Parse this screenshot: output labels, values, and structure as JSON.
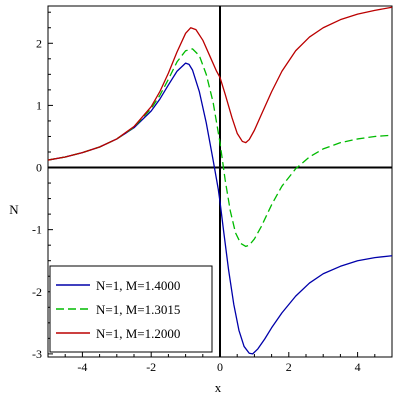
{
  "chart_data": {
    "type": "line",
    "xlabel": "x",
    "ylabel": "N",
    "xlim": [
      -5,
      5
    ],
    "ylim": [
      -3.05,
      2.6
    ],
    "x_ticks": [
      -4,
      -2,
      0,
      2,
      4
    ],
    "y_ticks": [
      -3,
      -2,
      -1,
      0,
      1,
      2
    ],
    "grid": false,
    "legend": {
      "placement": "bottom-left"
    },
    "series": [
      {
        "name": "N=1, M=1.4000",
        "color": "#0000aa",
        "dash": "solid",
        "x": [
          -5,
          -4.5,
          -4,
          -3.5,
          -3,
          -2.5,
          -2,
          -1.75,
          -1.5,
          -1.25,
          -1,
          -0.9,
          -0.8,
          -0.6,
          -0.4,
          -0.2,
          -0.05,
          0,
          0.1,
          0.25,
          0.4,
          0.55,
          0.7,
          0.85,
          0.95,
          1.1,
          1.3,
          1.5,
          1.8,
          2.2,
          2.6,
          3,
          3.5,
          4,
          4.5,
          5
        ],
        "y": [
          0.12,
          0.17,
          0.24,
          0.33,
          0.46,
          0.64,
          0.91,
          1.1,
          1.33,
          1.55,
          1.68,
          1.66,
          1.57,
          1.22,
          0.72,
          0.12,
          -0.35,
          -0.55,
          -1.0,
          -1.65,
          -2.2,
          -2.62,
          -2.88,
          -2.99,
          -3.0,
          -2.92,
          -2.76,
          -2.58,
          -2.34,
          -2.07,
          -1.86,
          -1.71,
          -1.59,
          -1.5,
          -1.45,
          -1.42
        ]
      },
      {
        "name": "N=1, M=1.3015",
        "color": "#00bb00",
        "dash": "dashed",
        "x": [
          -5,
          -4.5,
          -4,
          -3.5,
          -3,
          -2.5,
          -2,
          -1.75,
          -1.5,
          -1.25,
          -1.0,
          -0.8,
          -0.6,
          -0.4,
          -0.2,
          0,
          0.15,
          0.3,
          0.45,
          0.6,
          0.75,
          0.85,
          1.0,
          1.2,
          1.5,
          1.8,
          2.2,
          2.6,
          3,
          3.5,
          4,
          4.5,
          5
        ],
        "y": [
          0.12,
          0.17,
          0.24,
          0.33,
          0.46,
          0.65,
          0.95,
          1.16,
          1.42,
          1.7,
          1.88,
          1.91,
          1.8,
          1.5,
          1.05,
          0.4,
          -0.2,
          -0.7,
          -1.05,
          -1.22,
          -1.27,
          -1.25,
          -1.15,
          -0.95,
          -0.6,
          -0.3,
          -0.02,
          0.17,
          0.3,
          0.4,
          0.46,
          0.5,
          0.52
        ]
      },
      {
        "name": "N=1, M=1.2000",
        "color": "#bb0000",
        "dash": "solid",
        "x": [
          -5,
          -4.5,
          -4,
          -3.5,
          -3,
          -2.5,
          -2,
          -1.75,
          -1.5,
          -1.25,
          -1.0,
          -0.85,
          -0.7,
          -0.5,
          -0.3,
          -0.1,
          0,
          0.15,
          0.35,
          0.5,
          0.65,
          0.75,
          0.85,
          1.0,
          1.2,
          1.5,
          1.8,
          2.2,
          2.6,
          3,
          3.5,
          4,
          4.5,
          5
        ],
        "y": [
          0.12,
          0.17,
          0.24,
          0.33,
          0.46,
          0.66,
          0.98,
          1.22,
          1.52,
          1.86,
          2.16,
          2.25,
          2.22,
          2.05,
          1.8,
          1.55,
          1.45,
          1.18,
          0.8,
          0.55,
          0.42,
          0.4,
          0.45,
          0.6,
          0.85,
          1.22,
          1.55,
          1.88,
          2.1,
          2.25,
          2.38,
          2.47,
          2.53,
          2.58
        ]
      }
    ]
  }
}
